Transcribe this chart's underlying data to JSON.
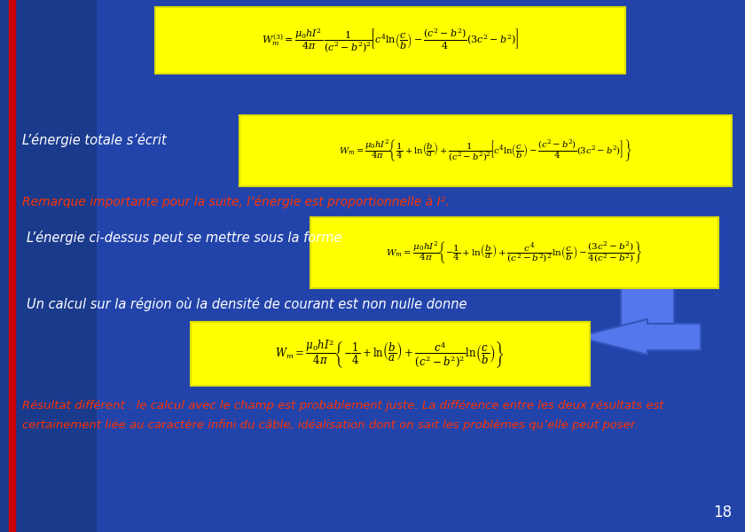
{
  "background_color": "#1a3a8c",
  "background_color2": "#2244aa",
  "slide_number": "18",
  "left_bar_color": "#cc0000",
  "formula_bg": "#ffff00",
  "white_text_color": "#ffffff",
  "red_text_color": "#ff3300",
  "arrow_fill": "#5577ee",
  "arrow_edge": "#3355bb",
  "texts": {
    "line1_white": "L’énergie totale s’écrit",
    "line2_red": "Remarque importante pour la suite, l’énergie est proportionnelle à I².",
    "line3_white": "L’énergie ci-dessus peut se mettre sous la forme",
    "line4_white": "Un calcul sur la région où la densité de courant est non nulle donne",
    "line5_red_1": "Résultat différent : le calcul avec le champ est probablement juste. La différence entre les deux résultats est",
    "line5_red_2": "certainement liée au caractère infini du câble, idéalisation dont on sait les problèmes qu’elle peut poser."
  }
}
